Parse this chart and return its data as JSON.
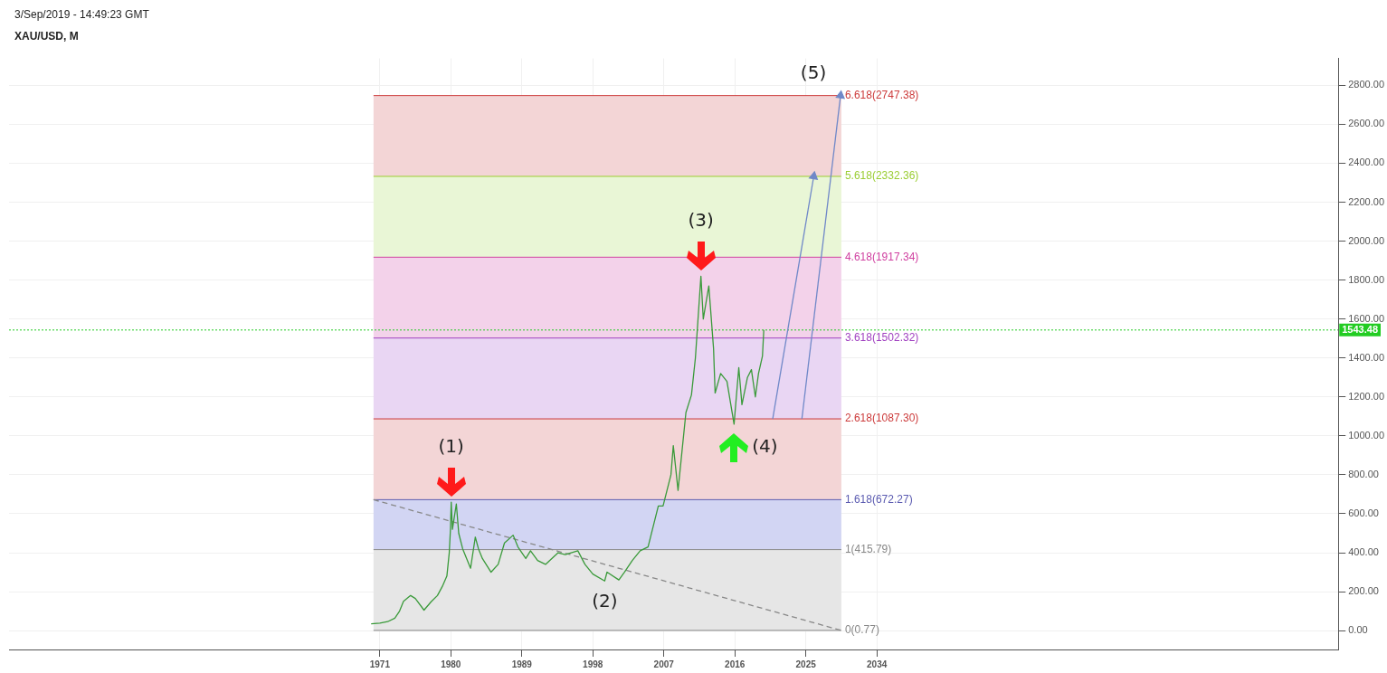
{
  "chart_data": {
    "type": "line",
    "title": "3/Sep/2019 - 14:49:23 GMT",
    "subtitle": "XAU/USD, M",
    "xlim": [
      1924,
      2092.5
    ],
    "xticks": [
      1971,
      1980,
      1989,
      1998,
      2007,
      2016,
      2025,
      2034
    ],
    "ylim": [
      -97,
      2938
    ],
    "yticks": [
      {
        "value": 0,
        "label": "0.00"
      },
      {
        "value": 200,
        "label": "200.00"
      },
      {
        "value": 400,
        "label": "400.00"
      },
      {
        "value": 600,
        "label": "600.00"
      },
      {
        "value": 800,
        "label": "800.00"
      },
      {
        "value": 1000,
        "label": "1000.00"
      },
      {
        "value": 1200,
        "label": "1200.00"
      },
      {
        "value": 1400,
        "label": "1400.00"
      },
      {
        "value": 1600,
        "label": "1600.00"
      },
      {
        "value": 1800,
        "label": "1800.00"
      },
      {
        "value": 2000,
        "label": "2000.00"
      },
      {
        "value": 2200,
        "label": "2200.00"
      },
      {
        "value": 2400,
        "label": "2400.00"
      },
      {
        "value": 2600,
        "label": "2600.00"
      },
      {
        "value": 2800,
        "label": "2800.00"
      }
    ],
    "grid": true,
    "legend": false,
    "marker": "none",
    "series": [
      {
        "color": "#3a9a3a",
        "x": [
          1969.9,
          1971.0,
          1972.0,
          1972.9,
          1973.5,
          1974.0,
          1974.9,
          1975.5,
          1976.6,
          1977.5,
          1978.3,
          1978.9,
          1979.5,
          1979.8,
          1979.95,
          1980.05,
          1980.2,
          1980.7,
          1981.0,
          1981.5,
          1982.5,
          1983.1,
          1983.5,
          1984.0,
          1985.1,
          1986.0,
          1986.8,
          1987.9,
          1988.5,
          1989.5,
          1990.1,
          1991.0,
          1992.0,
          1993.6,
          1994.5,
          1996.1,
          1997.0,
          1998.0,
          1999.5,
          1999.8,
          2001.3,
          2002.0,
          2003.0,
          2004.0,
          2005.0,
          2006.3,
          2006.9,
          2007.9,
          2008.2,
          2008.8,
          2009.8,
          2010.5,
          2011.0,
          2011.7,
          2012.0,
          2012.7,
          2013.3,
          2013.5,
          2014.2,
          2015.0,
          2015.9,
          2016.5,
          2016.9,
          2017.6,
          2018.1,
          2018.6,
          2019.0,
          2019.5,
          2019.67
        ],
        "values": [
          35,
          38,
          46,
          64,
          100,
          150,
          180,
          165,
          105,
          148,
          180,
          225,
          280,
          400,
          520,
          660,
          520,
          650,
          500,
          420,
          320,
          480,
          420,
          370,
          300,
          340,
          450,
          490,
          430,
          370,
          410,
          360,
          340,
          400,
          390,
          410,
          340,
          290,
          255,
          300,
          260,
          300,
          360,
          410,
          430,
          640,
          640,
          800,
          950,
          720,
          1120,
          1210,
          1400,
          1820,
          1600,
          1770,
          1450,
          1220,
          1320,
          1280,
          1060,
          1350,
          1160,
          1300,
          1340,
          1200,
          1320,
          1410,
          1543.48
        ]
      },
      {
        "type": "line",
        "color": "#888888",
        "line_style": "dashed",
        "x": [
          1970.2,
          2029.5
        ],
        "values": [
          672.27,
          0.77
        ]
      },
      {
        "type": "line",
        "color": "#7088c8",
        "marker": "triangle",
        "x": [
          2020.8,
          2026.0
        ],
        "values": [
          1087.3,
          2332.36
        ]
      },
      {
        "type": "line",
        "color": "#7088c8",
        "marker": "triangle",
        "x": [
          2024.5,
          2029.4
        ],
        "values": [
          1087.3,
          2747.38
        ]
      }
    ],
    "bands": [
      {
        "axis": "y",
        "from": 0.77,
        "to": 415.79,
        "color": "#e6e6e6"
      },
      {
        "axis": "y",
        "from": 415.79,
        "to": 672.27,
        "color": "#d2d5f3"
      },
      {
        "axis": "y",
        "from": 672.27,
        "to": 1087.3,
        "color": "#f3d5d6"
      },
      {
        "axis": "y",
        "from": 1087.3,
        "to": 1502.32,
        "color": "#e9d6f3"
      },
      {
        "axis": "y",
        "from": 1502.32,
        "to": 1917.34,
        "color": "#f3d2ea"
      },
      {
        "axis": "y",
        "from": 1917.34,
        "to": 2332.36,
        "color": "#e9f6d6"
      },
      {
        "axis": "y",
        "from": 2332.36,
        "to": 2747.38,
        "color": "#f3d5d6"
      }
    ],
    "ref_lines": [
      {
        "axis": "y",
        "value": 0.77,
        "label": "0(0.77)",
        "color": "#888888"
      },
      {
        "axis": "y",
        "value": 415.79,
        "label": "1(415.79)",
        "color": "#888888"
      },
      {
        "axis": "y",
        "value": 672.27,
        "label": "1.618(672.27)",
        "color": "#5a5ab0"
      },
      {
        "axis": "y",
        "value": 1087.3,
        "label": "2.618(1087.30)",
        "color": "#cc3a3a"
      },
      {
        "axis": "y",
        "value": 1502.32,
        "label": "3.618(1502.32)",
        "color": "#a040c0"
      },
      {
        "axis": "y",
        "value": 1917.34,
        "label": "4.618(1917.34)",
        "color": "#d040a0"
      },
      {
        "axis": "y",
        "value": 2332.36,
        "label": "5.618(2332.36)",
        "color": "#9acd32"
      },
      {
        "axis": "y",
        "value": 2747.38,
        "label": "6.618(2747.38)",
        "color": "#cc3a3a"
      },
      {
        "axis": "y",
        "value": 1543.48,
        "label": "1543.48",
        "color": "#22cc22",
        "line_style": "dotted"
      }
    ],
    "annotations": [
      {
        "text": "(1)",
        "x": 1980.05,
        "y": 660
      },
      {
        "text": "(2)",
        "x": 1999.5,
        "y": 255
      },
      {
        "text": "(3)",
        "x": 2011.7,
        "y": 1820
      },
      {
        "text": "(4)",
        "x": 2015.9,
        "y": 1060
      },
      {
        "text": "(5)",
        "x": 2029.4,
        "y": 2747.38
      }
    ]
  }
}
